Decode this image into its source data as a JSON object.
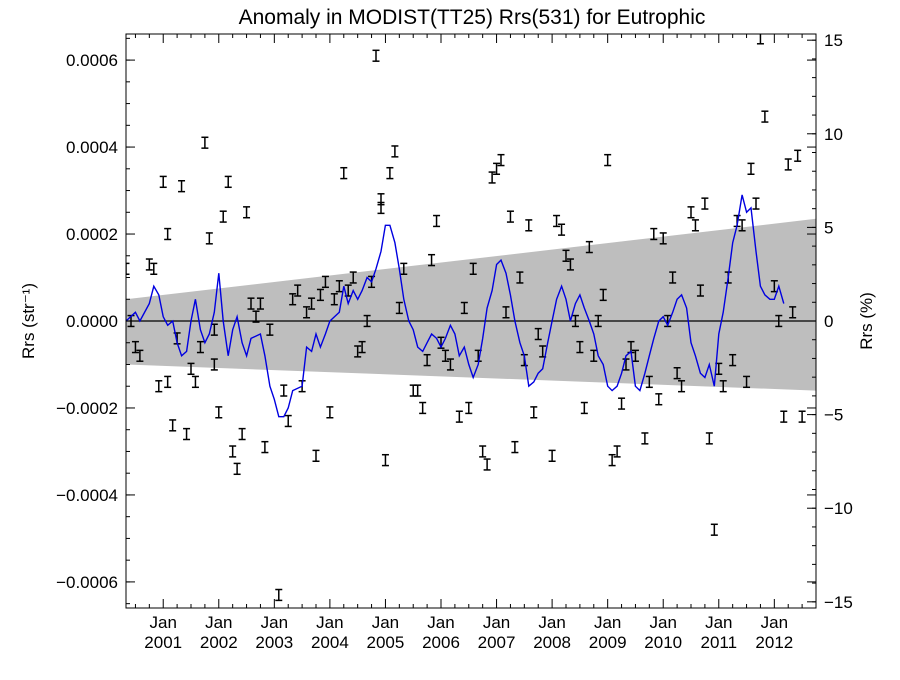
{
  "chart_data": {
    "type": "scatter",
    "title": "Anomaly in MODIST(TT25) Rrs(531) for Eutrophic",
    "ylabel_left": "Rrs (str⁻¹)",
    "ylabel_right": "Rrs (%)",
    "x_range": [
      2000.33,
      2012.75
    ],
    "y_range": [
      -0.00066,
      0.00066
    ],
    "y2_range": [
      -15.33,
      15.33
    ],
    "x_ticks": [
      {
        "value": 2001.0,
        "month": "Jan",
        "year": "2001"
      },
      {
        "value": 2002.0,
        "month": "Jan",
        "year": "2002"
      },
      {
        "value": 2003.0,
        "month": "Jan",
        "year": "2003"
      },
      {
        "value": 2004.0,
        "month": "Jan",
        "year": "2004"
      },
      {
        "value": 2005.0,
        "month": "Jan",
        "year": "2005"
      },
      {
        "value": 2006.0,
        "month": "Jan",
        "year": "2006"
      },
      {
        "value": 2007.0,
        "month": "Jan",
        "year": "2007"
      },
      {
        "value": 2008.0,
        "month": "Jan",
        "year": "2008"
      },
      {
        "value": 2009.0,
        "month": "Jan",
        "year": "2009"
      },
      {
        "value": 2010.0,
        "month": "Jan",
        "year": "2010"
      },
      {
        "value": 2011.0,
        "month": "Jan",
        "year": "2011"
      },
      {
        "value": 2012.0,
        "month": "Jan",
        "year": "2012"
      }
    ],
    "y_ticks": [
      {
        "value": 0.0006,
        "label": "0.0006"
      },
      {
        "value": 0.0004,
        "label": "0.0004"
      },
      {
        "value": 0.0002,
        "label": "0.0002"
      },
      {
        "value": 0.0,
        "label": "0.0000"
      },
      {
        "value": -0.0002,
        "label": "−0.0002"
      },
      {
        "value": -0.0004,
        "label": "−0.0004"
      },
      {
        "value": -0.0006,
        "label": "−0.0006"
      }
    ],
    "y2_ticks": [
      {
        "value": 15,
        "label": "15"
      },
      {
        "value": 10,
        "label": "10"
      },
      {
        "value": 5,
        "label": "5"
      },
      {
        "value": 0,
        "label": "0"
      },
      {
        "value": -5,
        "label": "−5"
      },
      {
        "value": -10,
        "label": "−10"
      },
      {
        "value": -15,
        "label": "−15"
      }
    ],
    "uncertainty_band": {
      "x": [
        2000.33,
        2012.75
      ],
      "upper": [
        5e-05,
        0.000235
      ],
      "lower": [
        -0.0001,
        -0.00016
      ],
      "color": "#bebebe"
    },
    "zero_line": 0,
    "smoothed_series": {
      "color": "#0000e0",
      "points": [
        [
          2000.33,
          0.0
        ],
        [
          2000.5,
          2e-05
        ],
        [
          2000.58,
          0.0
        ],
        [
          2000.75,
          4e-05
        ],
        [
          2000.83,
          8e-05
        ],
        [
          2000.92,
          6e-05
        ],
        [
          2001.0,
          1e-05
        ],
        [
          2001.08,
          -1e-05
        ],
        [
          2001.17,
          0.0
        ],
        [
          2001.25,
          -5e-05
        ],
        [
          2001.33,
          -8e-05
        ],
        [
          2001.42,
          -7e-05
        ],
        [
          2001.5,
          0.0
        ],
        [
          2001.58,
          5e-05
        ],
        [
          2001.67,
          -2e-05
        ],
        [
          2001.75,
          -5e-05
        ],
        [
          2001.83,
          -3e-05
        ],
        [
          2001.92,
          2e-05
        ],
        [
          2002.0,
          0.00011
        ],
        [
          2002.08,
          0.0
        ],
        [
          2002.17,
          -8e-05
        ],
        [
          2002.25,
          -2e-05
        ],
        [
          2002.33,
          1e-05
        ],
        [
          2002.42,
          -5e-05
        ],
        [
          2002.5,
          -8e-05
        ],
        [
          2002.58,
          -4e-05
        ],
        [
          2002.75,
          -3e-05
        ],
        [
          2002.83,
          -8e-05
        ],
        [
          2002.92,
          -0.00015
        ],
        [
          2003.0,
          -0.00018
        ],
        [
          2003.08,
          -0.00022
        ],
        [
          2003.17,
          -0.00022
        ],
        [
          2003.25,
          -0.0002
        ],
        [
          2003.33,
          -0.00016
        ],
        [
          2003.5,
          -0.00015
        ],
        [
          2003.58,
          -6e-05
        ],
        [
          2003.67,
          -7e-05
        ],
        [
          2003.75,
          -3e-05
        ],
        [
          2003.83,
          -6e-05
        ],
        [
          2003.92,
          -3e-05
        ],
        [
          2004.0,
          0.0
        ],
        [
          2004.17,
          2e-05
        ],
        [
          2004.25,
          8e-05
        ],
        [
          2004.33,
          4e-05
        ],
        [
          2004.42,
          7e-05
        ],
        [
          2004.5,
          5e-05
        ],
        [
          2004.58,
          7e-05
        ],
        [
          2004.67,
          0.0001
        ],
        [
          2004.75,
          9e-05
        ],
        [
          2004.83,
          0.00012
        ],
        [
          2004.92,
          0.00016
        ],
        [
          2005.0,
          0.00022
        ],
        [
          2005.08,
          0.00022
        ],
        [
          2005.17,
          0.00018
        ],
        [
          2005.25,
          0.00012
        ],
        [
          2005.33,
          5e-05
        ],
        [
          2005.42,
          0.0
        ],
        [
          2005.5,
          -2e-05
        ],
        [
          2005.58,
          -6e-05
        ],
        [
          2005.67,
          -7e-05
        ],
        [
          2005.75,
          -5e-05
        ],
        [
          2005.83,
          -3e-05
        ],
        [
          2005.92,
          -4e-05
        ],
        [
          2006.0,
          -6e-05
        ],
        [
          2006.08,
          -4e-05
        ],
        [
          2006.17,
          -1e-05
        ],
        [
          2006.25,
          -3e-05
        ],
        [
          2006.33,
          -8e-05
        ],
        [
          2006.42,
          -6e-05
        ],
        [
          2006.5,
          -0.0001
        ],
        [
          2006.58,
          -0.00013
        ],
        [
          2006.67,
          -0.0001
        ],
        [
          2006.75,
          -4e-05
        ],
        [
          2006.83,
          3e-05
        ],
        [
          2006.92,
          7e-05
        ],
        [
          2007.0,
          0.00013
        ],
        [
          2007.08,
          0.00014
        ],
        [
          2007.17,
          0.00011
        ],
        [
          2007.25,
          6e-05
        ],
        [
          2007.33,
          0.0
        ],
        [
          2007.42,
          -5e-05
        ],
        [
          2007.5,
          -8e-05
        ],
        [
          2007.58,
          -0.00015
        ],
        [
          2007.67,
          -0.00014
        ],
        [
          2007.75,
          -0.00012
        ],
        [
          2007.83,
          -0.00011
        ],
        [
          2007.92,
          -5e-05
        ],
        [
          2008.0,
          0.0
        ],
        [
          2008.08,
          5e-05
        ],
        [
          2008.17,
          8e-05
        ],
        [
          2008.25,
          5e-05
        ],
        [
          2008.33,
          0.0
        ],
        [
          2008.42,
          4e-05
        ],
        [
          2008.5,
          6e-05
        ],
        [
          2008.58,
          3e-05
        ],
        [
          2008.67,
          0.0
        ],
        [
          2008.75,
          -3e-05
        ],
        [
          2008.83,
          -8e-05
        ],
        [
          2008.92,
          -0.0001
        ],
        [
          2009.0,
          -0.00015
        ],
        [
          2009.08,
          -0.00016
        ],
        [
          2009.17,
          -0.00015
        ],
        [
          2009.25,
          -0.00012
        ],
        [
          2009.33,
          -8e-05
        ],
        [
          2009.42,
          -7e-05
        ],
        [
          2009.5,
          -0.00015
        ],
        [
          2009.58,
          -0.00016
        ],
        [
          2009.67,
          -0.00012
        ],
        [
          2009.75,
          -8e-05
        ],
        [
          2009.83,
          -4e-05
        ],
        [
          2009.92,
          0.0
        ],
        [
          2010.0,
          1e-05
        ],
        [
          2010.08,
          -1e-05
        ],
        [
          2010.17,
          2e-05
        ],
        [
          2010.25,
          5e-05
        ],
        [
          2010.33,
          6e-05
        ],
        [
          2010.42,
          3e-05
        ],
        [
          2010.5,
          -5e-05
        ],
        [
          2010.58,
          -8e-05
        ],
        [
          2010.67,
          -0.00012
        ],
        [
          2010.75,
          -0.00013
        ],
        [
          2010.83,
          -0.0001
        ],
        [
          2010.92,
          -0.00015
        ],
        [
          2011.0,
          -3e-05
        ],
        [
          2011.08,
          2e-05
        ],
        [
          2011.17,
          0.0001
        ],
        [
          2011.25,
          0.00018
        ],
        [
          2011.33,
          0.00022
        ],
        [
          2011.42,
          0.00029
        ],
        [
          2011.5,
          0.00025
        ],
        [
          2011.58,
          0.00026
        ],
        [
          2011.67,
          0.00016
        ],
        [
          2011.75,
          8e-05
        ],
        [
          2011.83,
          6e-05
        ],
        [
          2011.92,
          5e-05
        ],
        [
          2012.0,
          5e-05
        ],
        [
          2012.08,
          8e-05
        ],
        [
          2012.17,
          4e-05
        ]
      ]
    },
    "error_bars": {
      "color": "#000000",
      "half_height": 1.25e-05,
      "points": [
        [
          2000.33,
          0.00012
        ],
        [
          2000.42,
          0.0
        ],
        [
          2000.5,
          -6e-05
        ],
        [
          2000.58,
          -8e-05
        ],
        [
          2000.75,
          0.00013
        ],
        [
          2000.83,
          0.00012
        ],
        [
          2000.92,
          -0.00015
        ],
        [
          2001.0,
          0.00032
        ],
        [
          2001.08,
          0.0002
        ],
        [
          2001.08,
          -0.00014
        ],
        [
          2001.17,
          -0.00024
        ],
        [
          2001.25,
          -4e-05
        ],
        [
          2001.33,
          0.00031
        ],
        [
          2001.42,
          -0.00026
        ],
        [
          2001.5,
          -0.00011
        ],
        [
          2001.58,
          -0.00014
        ],
        [
          2001.67,
          -6e-05
        ],
        [
          2001.75,
          0.00041
        ],
        [
          2001.83,
          0.00019
        ],
        [
          2001.92,
          -2e-05
        ],
        [
          2001.92,
          -0.0001
        ],
        [
          2002.0,
          -0.00021
        ],
        [
          2002.08,
          0.00024
        ],
        [
          2002.17,
          0.00032
        ],
        [
          2002.25,
          -0.0003
        ],
        [
          2002.33,
          -0.00034
        ],
        [
          2002.42,
          -0.00026
        ],
        [
          2002.5,
          0.00025
        ],
        [
          2002.58,
          4e-05
        ],
        [
          2002.67,
          1e-05
        ],
        [
          2002.75,
          4e-05
        ],
        [
          2002.83,
          -0.00029
        ],
        [
          2002.92,
          -2e-05
        ],
        [
          2003.08,
          -0.00063
        ],
        [
          2003.17,
          -0.00016
        ],
        [
          2003.25,
          -0.00023
        ],
        [
          2003.33,
          5e-05
        ],
        [
          2003.42,
          7e-05
        ],
        [
          2003.5,
          -0.00015
        ],
        [
          2003.58,
          2e-05
        ],
        [
          2003.67,
          4e-05
        ],
        [
          2003.75,
          -0.00031
        ],
        [
          2003.83,
          6e-05
        ],
        [
          2003.92,
          9e-05
        ],
        [
          2004.0,
          -0.00021
        ],
        [
          2004.08,
          5e-05
        ],
        [
          2004.17,
          8e-05
        ],
        [
          2004.25,
          0.00034
        ],
        [
          2004.33,
          7e-05
        ],
        [
          2004.42,
          0.0001
        ],
        [
          2004.5,
          -7e-05
        ],
        [
          2004.58,
          -6e-05
        ],
        [
          2004.67,
          0.0
        ],
        [
          2004.75,
          9e-05
        ],
        [
          2004.83,
          0.00061
        ],
        [
          2004.92,
          0.00028
        ],
        [
          2004.92,
          0.00026
        ],
        [
          2005.0,
          -0.00032
        ],
        [
          2005.08,
          0.00034
        ],
        [
          2005.17,
          0.00039
        ],
        [
          2005.25,
          3e-05
        ],
        [
          2005.33,
          0.00012
        ],
        [
          2005.5,
          -0.00016
        ],
        [
          2005.58,
          -0.00016
        ],
        [
          2005.67,
          -0.0002
        ],
        [
          2005.75,
          -9e-05
        ],
        [
          2005.83,
          0.00014
        ],
        [
          2005.92,
          0.00023
        ],
        [
          2006.0,
          -5e-05
        ],
        [
          2006.08,
          -8e-05
        ],
        [
          2006.17,
          -0.0001
        ],
        [
          2006.33,
          -0.00022
        ],
        [
          2006.42,
          3e-05
        ],
        [
          2006.5,
          -0.0002
        ],
        [
          2006.58,
          0.00012
        ],
        [
          2006.67,
          -8e-05
        ],
        [
          2006.75,
          -0.0003
        ],
        [
          2006.83,
          -0.00033
        ],
        [
          2006.92,
          0.00033
        ],
        [
          2007.0,
          0.00035
        ],
        [
          2007.08,
          0.00037
        ],
        [
          2007.17,
          2e-05
        ],
        [
          2007.25,
          0.00024
        ],
        [
          2007.33,
          -0.00029
        ],
        [
          2007.42,
          0.0001
        ],
        [
          2007.5,
          -9e-05
        ],
        [
          2007.58,
          0.00022
        ],
        [
          2007.67,
          -0.00021
        ],
        [
          2007.75,
          -3e-05
        ],
        [
          2007.83,
          -7e-05
        ],
        [
          2008.0,
          -0.00031
        ],
        [
          2008.08,
          0.00023
        ],
        [
          2008.17,
          0.00021
        ],
        [
          2008.25,
          0.00015
        ],
        [
          2008.33,
          0.00013
        ],
        [
          2008.42,
          0.0
        ],
        [
          2008.5,
          -6e-05
        ],
        [
          2008.58,
          -0.0002
        ],
        [
          2008.67,
          0.00017
        ],
        [
          2008.75,
          -8e-05
        ],
        [
          2008.83,
          0.0
        ],
        [
          2008.92,
          6e-05
        ],
        [
          2009.0,
          0.00037
        ],
        [
          2009.08,
          -0.00032
        ],
        [
          2009.17,
          -0.0003
        ],
        [
          2009.25,
          -0.00019
        ],
        [
          2009.33,
          -0.0001
        ],
        [
          2009.42,
          -6e-05
        ],
        [
          2009.5,
          -8e-05
        ],
        [
          2009.67,
          -0.00027
        ],
        [
          2009.75,
          -0.00014
        ],
        [
          2009.83,
          0.0002
        ],
        [
          2009.92,
          -0.00018
        ],
        [
          2010.0,
          0.00019
        ],
        [
          2010.08,
          0.0
        ],
        [
          2010.17,
          0.0001
        ],
        [
          2010.25,
          -0.00012
        ],
        [
          2010.33,
          -0.00015
        ],
        [
          2010.5,
          0.00025
        ],
        [
          2010.58,
          0.00022
        ],
        [
          2010.67,
          7e-05
        ],
        [
          2010.75,
          0.00027
        ],
        [
          2010.83,
          -0.00027
        ],
        [
          2010.92,
          -0.00048
        ],
        [
          2011.0,
          -0.00011
        ],
        [
          2011.08,
          -0.00015
        ],
        [
          2011.17,
          0.0001
        ],
        [
          2011.25,
          -9e-05
        ],
        [
          2011.33,
          0.00023
        ],
        [
          2011.42,
          0.00022
        ],
        [
          2011.5,
          -0.00014
        ],
        [
          2011.58,
          0.00035
        ],
        [
          2011.67,
          0.00027
        ],
        [
          2011.75,
          0.00065
        ],
        [
          2011.83,
          0.00047
        ],
        [
          2012.0,
          8e-05
        ],
        [
          2012.08,
          0.0
        ],
        [
          2012.17,
          -0.00022
        ],
        [
          2012.25,
          0.00036
        ],
        [
          2012.33,
          2e-05
        ],
        [
          2012.42,
          0.00038
        ],
        [
          2012.5,
          -0.00022
        ]
      ]
    },
    "grid": false
  }
}
